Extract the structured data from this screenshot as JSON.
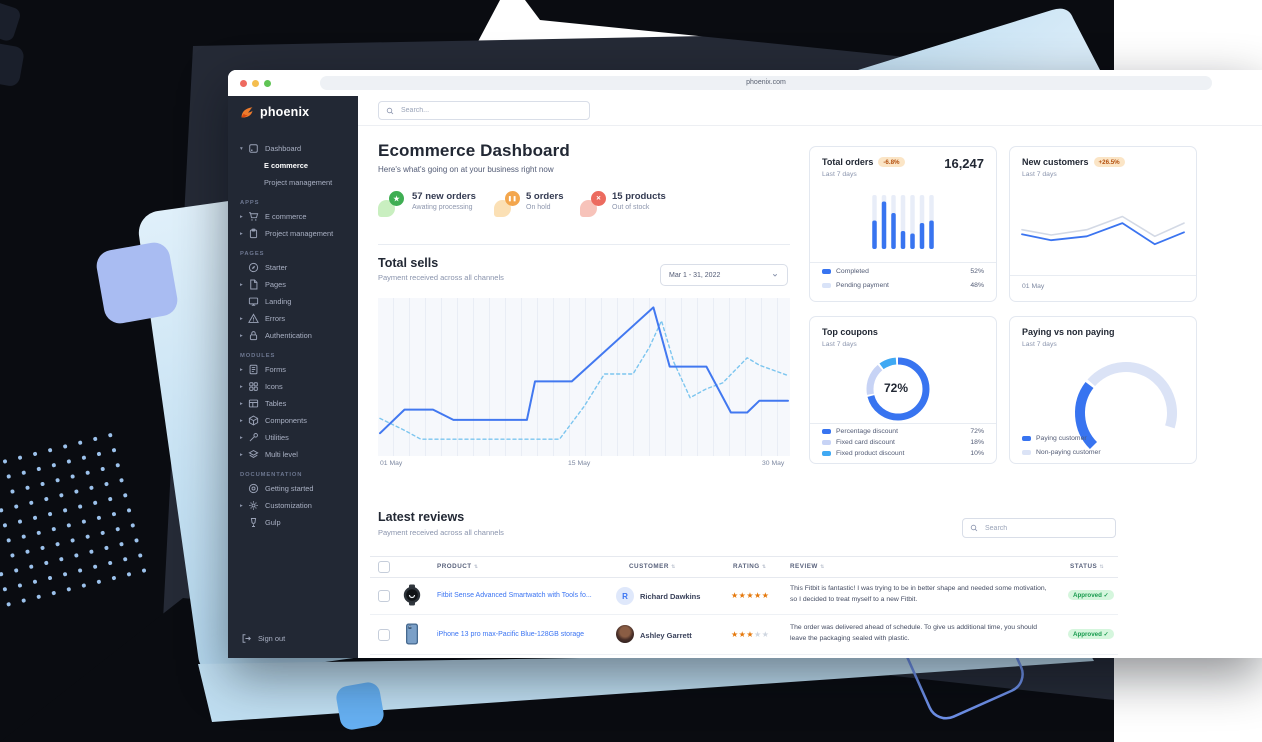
{
  "browser": {
    "url": "phoenix.com"
  },
  "theme": {
    "primary": "#3874f0",
    "link": "#3b74f2",
    "sidebar_bg": "#222834",
    "warning_badge_bg": "#fbe5c6",
    "warning_badge_text": "#b4500f",
    "success_badge_bg": "#d5f6dd",
    "success_badge_text": "#179a4d",
    "star_filled": "#e5780b",
    "star_empty": "#cfd6e0"
  },
  "icons": {
    "search": "magnifier",
    "sort": "⇅",
    "check": "✓",
    "star": "★",
    "caret_right": "▸",
    "caret_down": "▾"
  },
  "sidebar": {
    "logo": "phoenix",
    "sections": [
      {
        "label": "",
        "items": [
          {
            "label": "Dashboard"
          },
          {
            "label": "E commerce"
          },
          {
            "label": "Project management"
          }
        ]
      },
      {
        "label": "APPS",
        "items": [
          {
            "label": "E commerce"
          },
          {
            "label": "Project management"
          }
        ]
      },
      {
        "label": "PAGES",
        "items": [
          {
            "label": "Starter"
          },
          {
            "label": "Pages"
          },
          {
            "label": "Landing"
          },
          {
            "label": "Errors"
          },
          {
            "label": "Authentication"
          }
        ]
      },
      {
        "label": "MODULES",
        "items": [
          {
            "label": "Forms"
          },
          {
            "label": "Icons"
          },
          {
            "label": "Tables"
          },
          {
            "label": "Components"
          },
          {
            "label": "Utilities"
          },
          {
            "label": "Multi level"
          }
        ]
      },
      {
        "label": "DOCUMENTATION",
        "items": [
          {
            "label": "Getting started"
          },
          {
            "label": "Customization"
          },
          {
            "label": "Gulp"
          }
        ]
      }
    ],
    "sign_out": "Sign out"
  },
  "topbar": {
    "search_placeholder": "Search..."
  },
  "header": {
    "title": "Ecommerce Dashboard",
    "subtitle": "Here's what's going on at your business right now"
  },
  "stats": [
    {
      "title": "57 new orders",
      "subtitle": "Awating processing"
    },
    {
      "title": "5 orders",
      "subtitle": "On hold"
    },
    {
      "title": "15 products",
      "subtitle": "Out of stock"
    }
  ],
  "chart_data": [
    {
      "type": "line",
      "title": "Total sells",
      "subtitle": "Payment received across all channels",
      "date_range_label": "Mar 1 - 31, 2022",
      "x_ticks": [
        "01 May",
        "15 May",
        "30 May"
      ],
      "note": "y values normalized 0-100 of plot height",
      "series": [
        {
          "name": "secondary",
          "color": "#7cc5ef",
          "dashed": true,
          "width": 1.4,
          "points": [
            [
              0,
              22
            ],
            [
              6,
              14
            ],
            [
              10,
              8
            ],
            [
              44,
              8
            ],
            [
              50,
              30
            ],
            [
              55,
              52
            ],
            [
              62,
              52
            ],
            [
              66,
              70
            ],
            [
              69,
              88
            ],
            [
              72,
              60
            ],
            [
              76,
              36
            ],
            [
              80,
              42
            ],
            [
              84,
              46
            ],
            [
              90,
              63
            ],
            [
              93,
              58
            ],
            [
              100,
              51
            ]
          ]
        },
        {
          "name": "primary",
          "color": "#4278f0",
          "width": 2,
          "points": [
            [
              0,
              12
            ],
            [
              6,
              28
            ],
            [
              13,
              28
            ],
            [
              18,
              21
            ],
            [
              36,
              21
            ],
            [
              38,
              47
            ],
            [
              47,
              47
            ],
            [
              67,
              97
            ],
            [
              71,
              57
            ],
            [
              80,
              57
            ],
            [
              86,
              26
            ],
            [
              90,
              26
            ],
            [
              93,
              34
            ],
            [
              100,
              34
            ]
          ]
        }
      ]
    },
    {
      "type": "bar",
      "title": "Total orders",
      "change_badge": "-6.8%",
      "period": "Last 7 days",
      "total_value": "16,247",
      "values": [
        57,
        95,
        72,
        36,
        31,
        52,
        57
      ],
      "bar_color": "#3874f0",
      "track_color": "#e8edf8",
      "legend": [
        {
          "label": "Completed",
          "pct": "52%",
          "color": "#3874f0"
        },
        {
          "label": "Pending payment",
          "pct": "48%",
          "color": "#d9e3f8"
        }
      ]
    },
    {
      "type": "line",
      "title": "New customers",
      "change_badge": "+26.5%",
      "period": "Last 7 days",
      "x_ticks": [
        "01 May"
      ],
      "series": [
        {
          "name": "previous",
          "color": "#d3d9e5",
          "width": 1.6,
          "points": [
            [
              0,
              52
            ],
            [
              18,
              44
            ],
            [
              40,
              52
            ],
            [
              62,
              72
            ],
            [
              82,
              42
            ],
            [
              100,
              62
            ]
          ]
        },
        {
          "name": "current",
          "color": "#3b74f0",
          "width": 1.8,
          "points": [
            [
              0,
              45
            ],
            [
              18,
              36
            ],
            [
              40,
              42
            ],
            [
              62,
              62
            ],
            [
              82,
              30
            ],
            [
              100,
              48
            ]
          ]
        }
      ]
    },
    {
      "type": "donut",
      "title": "Top coupons",
      "period": "Last 7 days",
      "center_label": "72%",
      "slices": [
        {
          "label": "Percentage discount",
          "value": 72,
          "pct": "72%",
          "color": "#3874f0"
        },
        {
          "label": "Fixed card discount",
          "value": 18,
          "pct": "18%",
          "color": "#c7d3f5"
        },
        {
          "label": "Fixed product discount",
          "value": 10,
          "pct": "10%",
          "color": "#40a9f3"
        }
      ]
    },
    {
      "type": "gauge",
      "title": "Paying vs non paying",
      "period": "Last 7 days",
      "slices": [
        {
          "label": "Paying customer",
          "color": "#3874f0"
        },
        {
          "label": "Non-paying customer",
          "color": "#dbe3f6"
        }
      ],
      "render": {
        "start_deg": 135,
        "sweeps_deg": [
          86,
          160
        ]
      }
    }
  ],
  "reviews": {
    "title": "Latest reviews",
    "subtitle": "Payment received across all channels",
    "search_placeholder": "Search",
    "columns": [
      "PRODUCT",
      "CUSTOMER",
      "RATING",
      "REVIEW",
      "STATUS"
    ],
    "rows": [
      {
        "product": "Fitbit Sense Advanced Smartwatch with Tools fo...",
        "customer": "Richard Dawkins",
        "avatar_initial": "R",
        "rating": 5,
        "review": "This Fitbit is fantastic! I was trying to be in better shape and needed some motivation, so I decided to treat myself to a new Fitbit.",
        "status": "Approved"
      },
      {
        "product": "iPhone 13 pro max-Pacific Blue-128GB storage",
        "customer": "Ashley Garrett",
        "rating": 3,
        "review": "The order was delivered ahead of schedule. To give us additional time, you should leave the packaging sealed with plastic.",
        "status": "Approved"
      }
    ]
  }
}
